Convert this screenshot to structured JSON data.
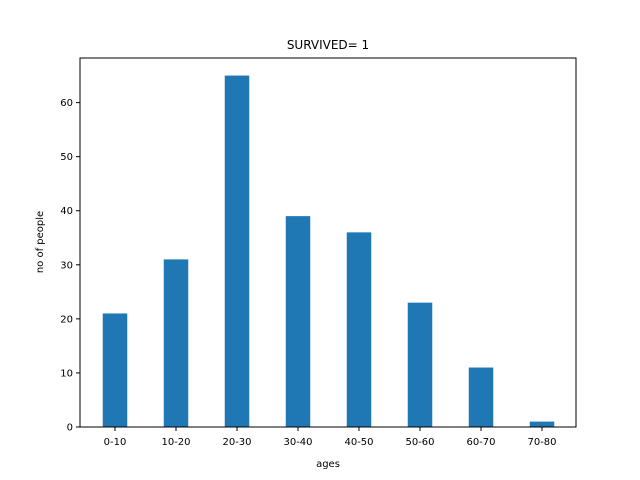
{
  "chart_data": {
    "type": "bar",
    "title": "SURVIVED= 1",
    "xlabel": "ages",
    "ylabel": "no of people",
    "categories": [
      "0-10",
      "10-20",
      "20-30",
      "30-40",
      "40-50",
      "50-60",
      "60-70",
      "70-80"
    ],
    "values": [
      21,
      31,
      65,
      39,
      36,
      23,
      11,
      1
    ],
    "ylim": [
      0,
      68.25
    ],
    "yticks": [
      0,
      10,
      20,
      30,
      40,
      50,
      60
    ],
    "bar_color": "#1f77b4",
    "grid": false,
    "legend": "none"
  }
}
